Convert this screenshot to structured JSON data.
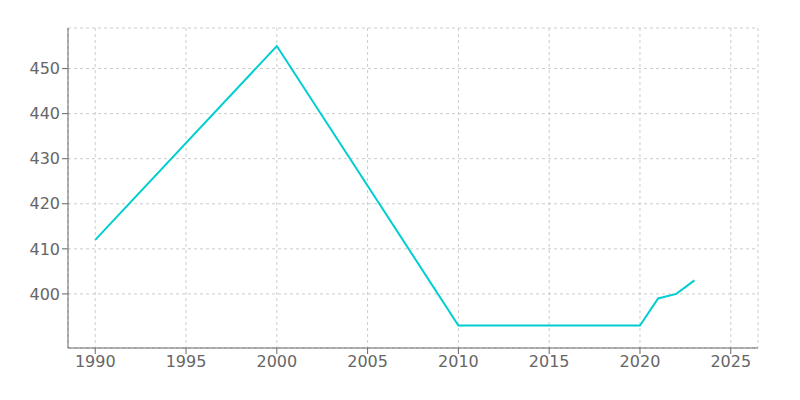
{
  "chart_data": {
    "type": "line",
    "x": [
      1990,
      2000,
      2010,
      2020,
      2021,
      2022,
      2023
    ],
    "values": [
      412,
      455,
      393,
      393,
      399,
      400,
      403
    ],
    "color": "#00CED1",
    "xlim": [
      1988.5,
      2026.5
    ],
    "ylim": [
      388,
      459
    ],
    "xticks": [
      1990,
      1995,
      2000,
      2005,
      2010,
      2015,
      2020,
      2025
    ],
    "yticks": [
      400,
      410,
      420,
      430,
      440,
      450
    ],
    "grid": true
  }
}
